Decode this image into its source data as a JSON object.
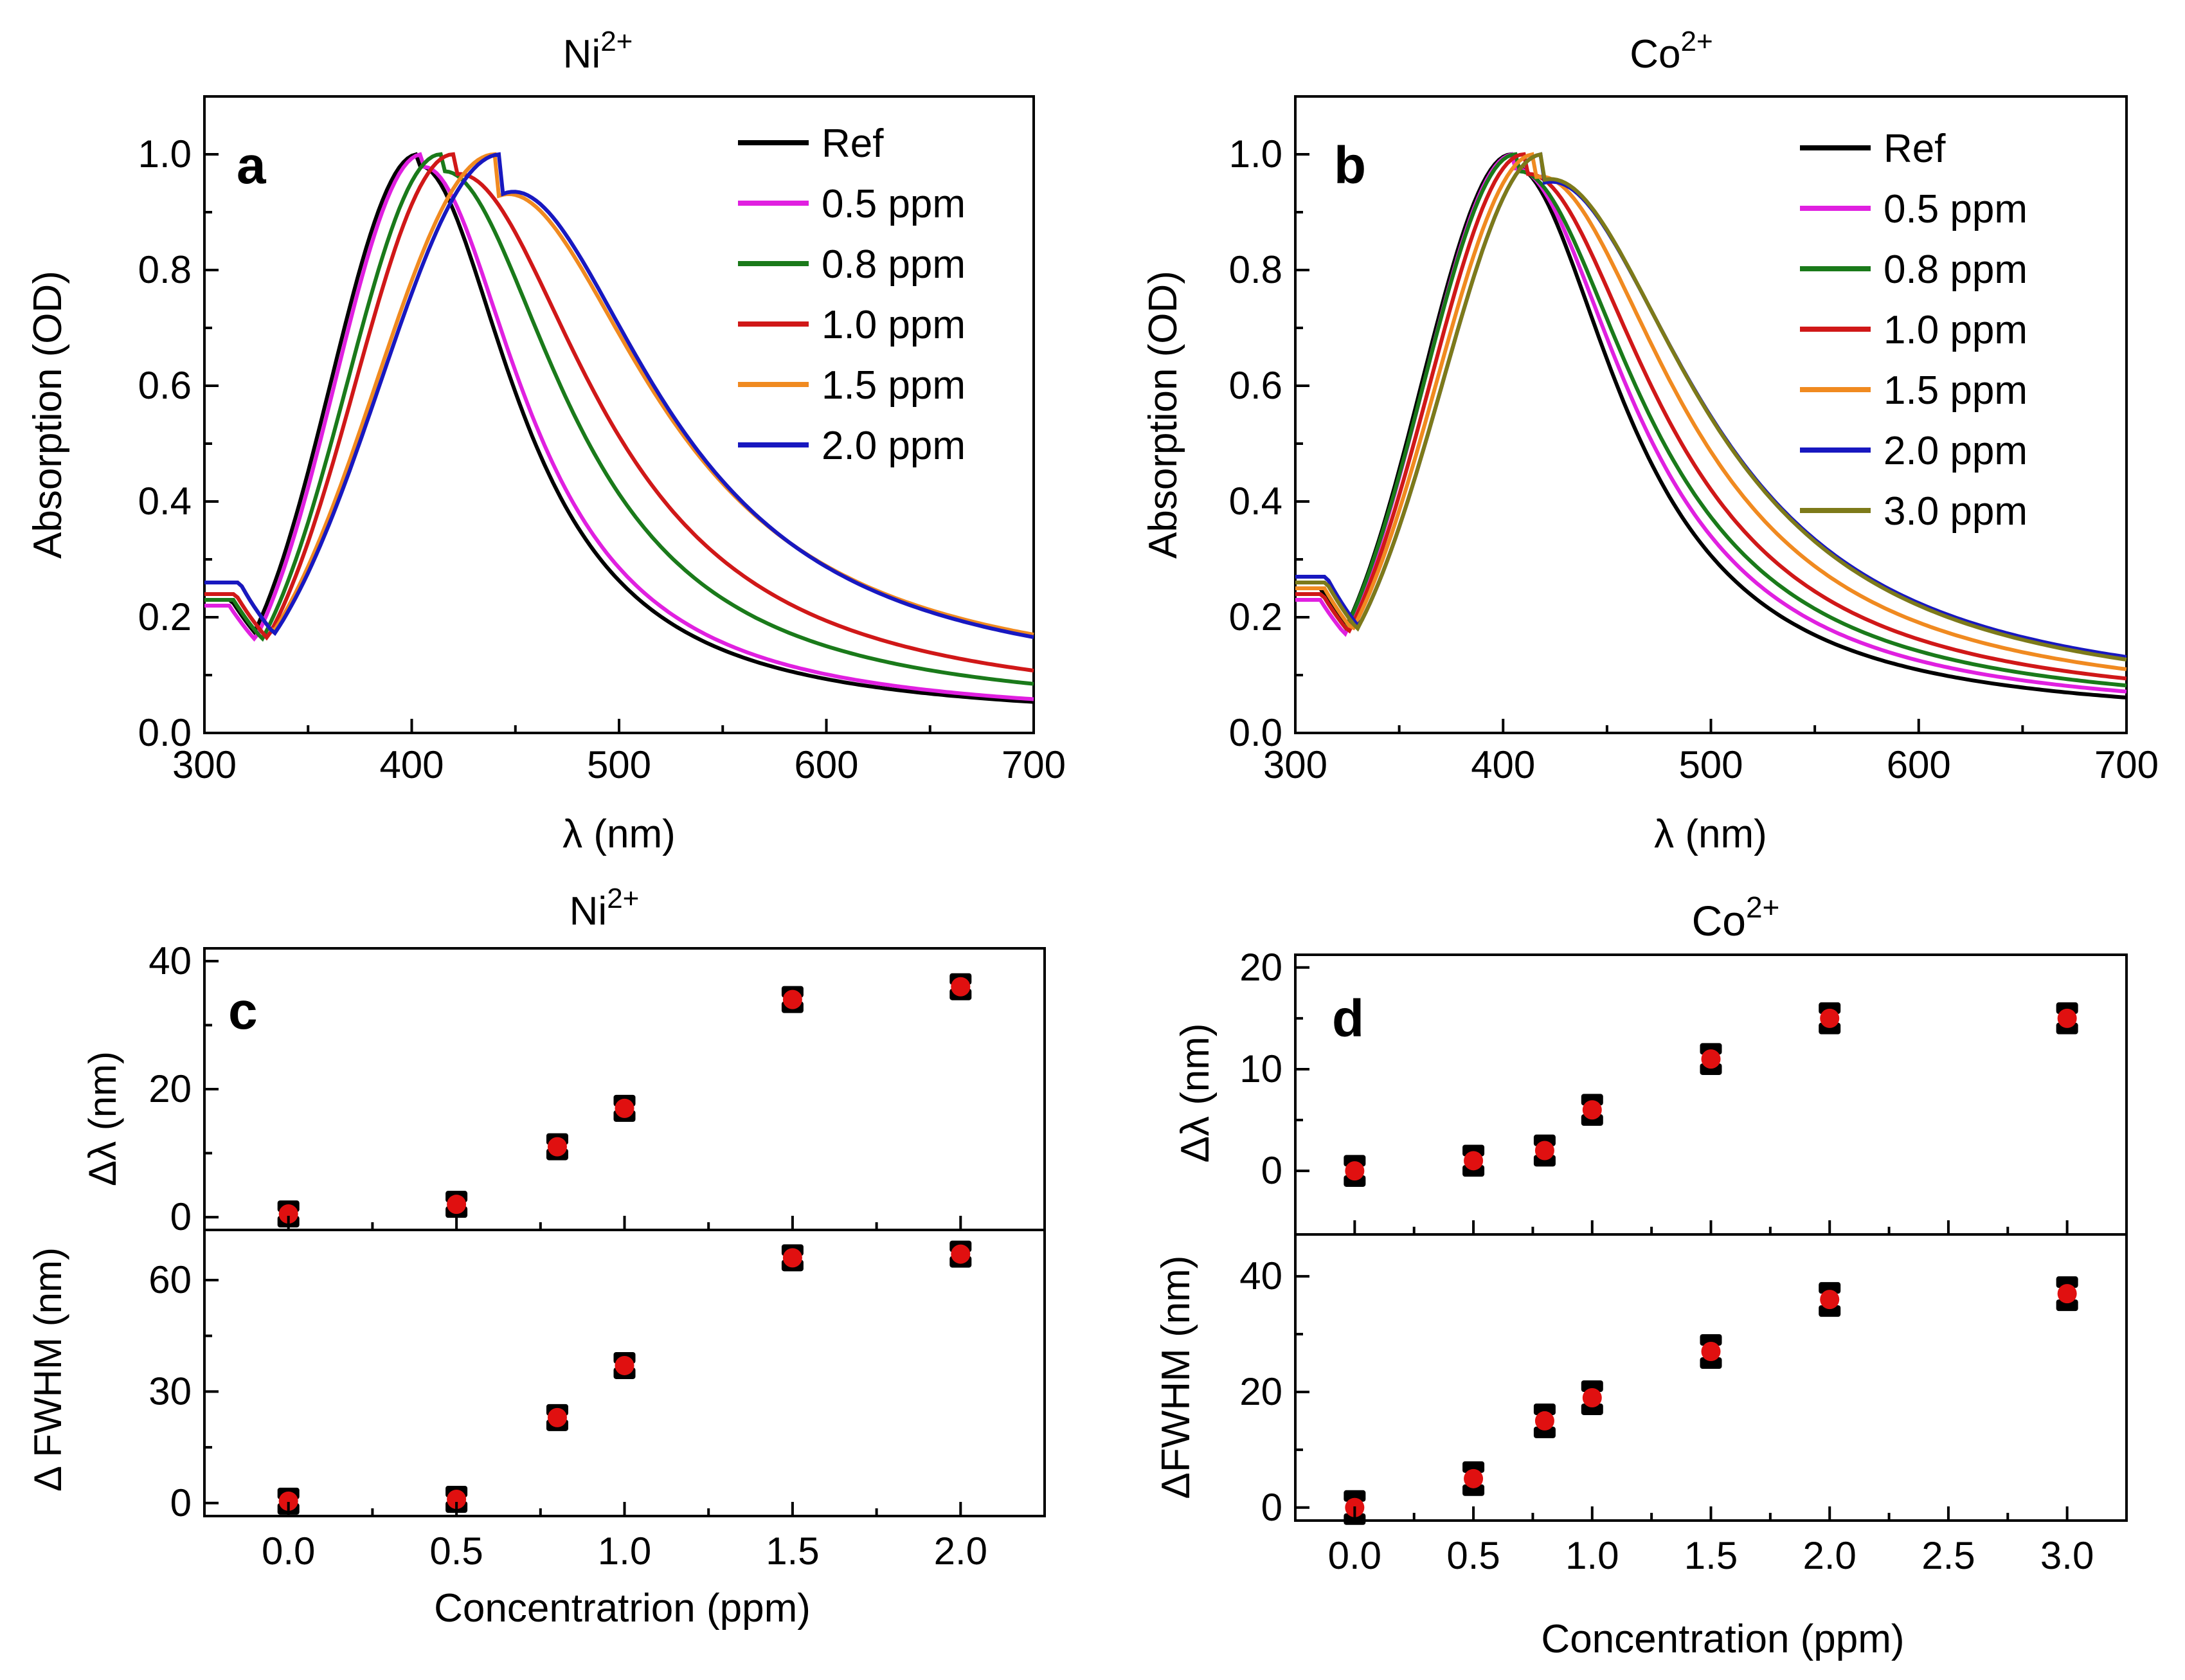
{
  "figure": {
    "panel_a": {
      "label": "a",
      "title": "Ni",
      "title_sup": "2+",
      "xlabel": "λ (nm)",
      "ylabel": "Absorption (OD)",
      "xticks": [
        "300",
        "400",
        "500",
        "600",
        "700"
      ],
      "yticks": [
        "0.0",
        "0.2",
        "0.4",
        "0.6",
        "0.8",
        "1.0"
      ],
      "legend": [
        "Ref",
        "0.5 ppm",
        "0.8 ppm",
        "1.0 ppm",
        "1.5 ppm",
        "2.0 ppm"
      ]
    },
    "panel_b": {
      "label": "b",
      "title": "Co",
      "title_sup": "2+",
      "xlabel": "λ (nm)",
      "ylabel": "Absorption (OD)",
      "xticks": [
        "300",
        "400",
        "500",
        "600",
        "700"
      ],
      "yticks": [
        "0.0",
        "0.2",
        "0.4",
        "0.6",
        "0.8",
        "1.0"
      ],
      "legend": [
        "Ref",
        "0.5 ppm",
        "0.8 ppm",
        "1.0 ppm",
        "1.5 ppm",
        "2.0 ppm",
        "3.0 ppm"
      ]
    },
    "panel_c": {
      "label": "c",
      "title": "Ni",
      "title_sup": "2+",
      "xlabel": "Concentratrion (ppm)",
      "ylabel_top": "Δλ (nm)",
      "ylabel_bottom": "Δ FWHM (nm)",
      "xticks": [
        "0.0",
        "0.5",
        "1.0",
        "1.5",
        "2.0"
      ],
      "yticks_top": [
        "0",
        "20",
        "40"
      ],
      "yticks_bottom": [
        "0",
        "30",
        "60"
      ]
    },
    "panel_d": {
      "label": "d",
      "title": "Co",
      "title_sup": "2+",
      "xlabel": "Concentration (ppm)",
      "ylabel_top": "Δλ (nm)",
      "ylabel_bottom": "ΔFWHM (nm)",
      "xticks": [
        "0.0",
        "0.5",
        "1.0",
        "1.5",
        "2.0",
        "2.5",
        "3.0"
      ],
      "yticks_top": [
        "0",
        "10",
        "20"
      ],
      "yticks_bottom": [
        "0",
        "20",
        "40"
      ]
    }
  },
  "colors": {
    "ref": "#000000",
    "c05": "#e020e0",
    "c08": "#1a7a1a",
    "c10": "#d01818",
    "c15": "#f08a20",
    "c20": "#1818c0",
    "c30": "#7d7a1a",
    "marker_center": "#e01010",
    "axis": "#000000"
  },
  "chart_data": [
    {
      "panel": "a",
      "type": "line",
      "title": "Ni2+",
      "xlabel": "λ (nm)",
      "ylabel": "Absorption (OD)",
      "xlim": [
        300,
        700
      ],
      "ylim": [
        0,
        1.1
      ],
      "series": [
        {
          "name": "Ref",
          "color_key": "ref",
          "peak": 403,
          "wl": 42,
          "wr": 56,
          "tail": 0.02,
          "dip_min": 0.23,
          "dip_x": 313,
          "start": 0.27
        },
        {
          "name": "0.5 ppm",
          "color_key": "c05",
          "peak": 405,
          "wl": 42,
          "wr": 58,
          "tail": 0.022,
          "dip_min": 0.22,
          "dip_x": 312,
          "start": 0.25
        },
        {
          "name": "0.8 ppm",
          "color_key": "c08",
          "peak": 414,
          "wl": 45,
          "wr": 70,
          "tail": 0.03,
          "dip_min": 0.23,
          "dip_x": 314,
          "start": 0.28
        },
        {
          "name": "1.0 ppm",
          "color_key": "c10",
          "peak": 420,
          "wl": 47,
          "wr": 80,
          "tail": 0.035,
          "dip_min": 0.24,
          "dip_x": 315,
          "start": 0.29
        },
        {
          "name": "1.5 ppm",
          "color_key": "c15",
          "peak": 440,
          "wl": 57,
          "wr": 88,
          "tail": 0.075,
          "dip_min": 0.26,
          "dip_x": 317,
          "start": 0.32
        },
        {
          "name": "2.0 ppm",
          "color_key": "c20",
          "peak": 443,
          "wl": 58,
          "wr": 87,
          "tail": 0.07,
          "dip_min": 0.26,
          "dip_x": 317,
          "start": 0.33
        }
      ]
    },
    {
      "panel": "b",
      "type": "line",
      "title": "Co2+",
      "xlabel": "λ (nm)",
      "ylabel": "Absorption (OD)",
      "xlim": [
        300,
        700
      ],
      "ylim": [
        0,
        1.1
      ],
      "series": [
        {
          "name": "Ref",
          "color_key": "ref",
          "peak": 404,
          "wl": 43,
          "wr": 62,
          "tail": 0.02,
          "dip_min": 0.25,
          "dip_x": 312,
          "start": 0.28
        },
        {
          "name": "0.5 ppm",
          "color_key": "c05",
          "peak": 405,
          "wl": 43,
          "wr": 66,
          "tail": 0.025,
          "dip_min": 0.23,
          "dip_x": 312,
          "start": 0.26
        },
        {
          "name": "0.8 ppm",
          "color_key": "c08",
          "peak": 406,
          "wl": 44,
          "wr": 70,
          "tail": 0.03,
          "dip_min": 0.24,
          "dip_x": 313,
          "start": 0.27
        },
        {
          "name": "1.0 ppm",
          "color_key": "c10",
          "peak": 410,
          "wl": 45,
          "wr": 74,
          "tail": 0.035,
          "dip_min": 0.24,
          "dip_x": 313,
          "start": 0.27
        },
        {
          "name": "1.5 ppm",
          "color_key": "c15",
          "peak": 415,
          "wl": 47,
          "wr": 80,
          "tail": 0.04,
          "dip_min": 0.25,
          "dip_x": 314,
          "start": 0.28
        },
        {
          "name": "2.0 ppm",
          "color_key": "c20",
          "peak": 419,
          "wl": 48,
          "wr": 86,
          "tail": 0.05,
          "dip_min": 0.27,
          "dip_x": 315,
          "start": 0.31
        },
        {
          "name": "3.0 ppm",
          "color_key": "c30",
          "peak": 419,
          "wl": 48,
          "wr": 86,
          "tail": 0.045,
          "dip_min": 0.26,
          "dip_x": 315,
          "start": 0.3
        }
      ]
    },
    {
      "panel": "c",
      "type": "scatter",
      "title": "Ni2+",
      "xlabel": "Concentratrion (ppm)",
      "xlim": [
        -0.25,
        2.25
      ],
      "top": {
        "ylabel": "Δλ (nm)",
        "ylim": [
          0,
          40
        ],
        "points": [
          [
            0.0,
            0.5,
            1.0
          ],
          [
            0.5,
            2.0,
            1.2
          ],
          [
            0.8,
            11.0,
            1.2
          ],
          [
            1.0,
            17.0,
            1.2
          ],
          [
            1.5,
            34.0,
            1.2
          ],
          [
            2.0,
            36.0,
            1.2
          ]
        ]
      },
      "bottom": {
        "ylabel": "Δ FWHM (nm)",
        "ylim": [
          0,
          70
        ],
        "points": [
          [
            0.0,
            0.5,
            1.5
          ],
          [
            0.5,
            1.0,
            1.5
          ],
          [
            0.8,
            23.0,
            2.0
          ],
          [
            1.0,
            37.0,
            2.0
          ],
          [
            1.5,
            66.0,
            2.0
          ],
          [
            2.0,
            67.0,
            2.0
          ]
        ]
      }
    },
    {
      "panel": "d",
      "type": "scatter",
      "title": "Co2+",
      "xlabel": "Concentration (ppm)",
      "xlim": [
        -0.25,
        3.25
      ],
      "top": {
        "ylabel": "Δλ (nm)",
        "ylim": [
          -5,
          20
        ],
        "points": [
          [
            0.0,
            0.0,
            1.0
          ],
          [
            0.5,
            1.0,
            1.0
          ],
          [
            0.8,
            2.0,
            1.0
          ],
          [
            1.0,
            6.0,
            1.0
          ],
          [
            1.5,
            11.0,
            1.0
          ],
          [
            2.0,
            15.0,
            1.0
          ],
          [
            3.0,
            15.0,
            1.0
          ]
        ]
      },
      "bottom": {
        "ylabel": "ΔFWHM (nm)",
        "ylim": [
          0,
          45
        ],
        "points": [
          [
            0.0,
            0.0,
            2.0
          ],
          [
            0.5,
            5.0,
            2.0
          ],
          [
            0.8,
            15.0,
            2.0
          ],
          [
            1.0,
            19.0,
            2.0
          ],
          [
            1.5,
            27.0,
            2.0
          ],
          [
            2.0,
            36.0,
            2.0
          ],
          [
            3.0,
            37.0,
            2.0
          ]
        ]
      }
    }
  ]
}
